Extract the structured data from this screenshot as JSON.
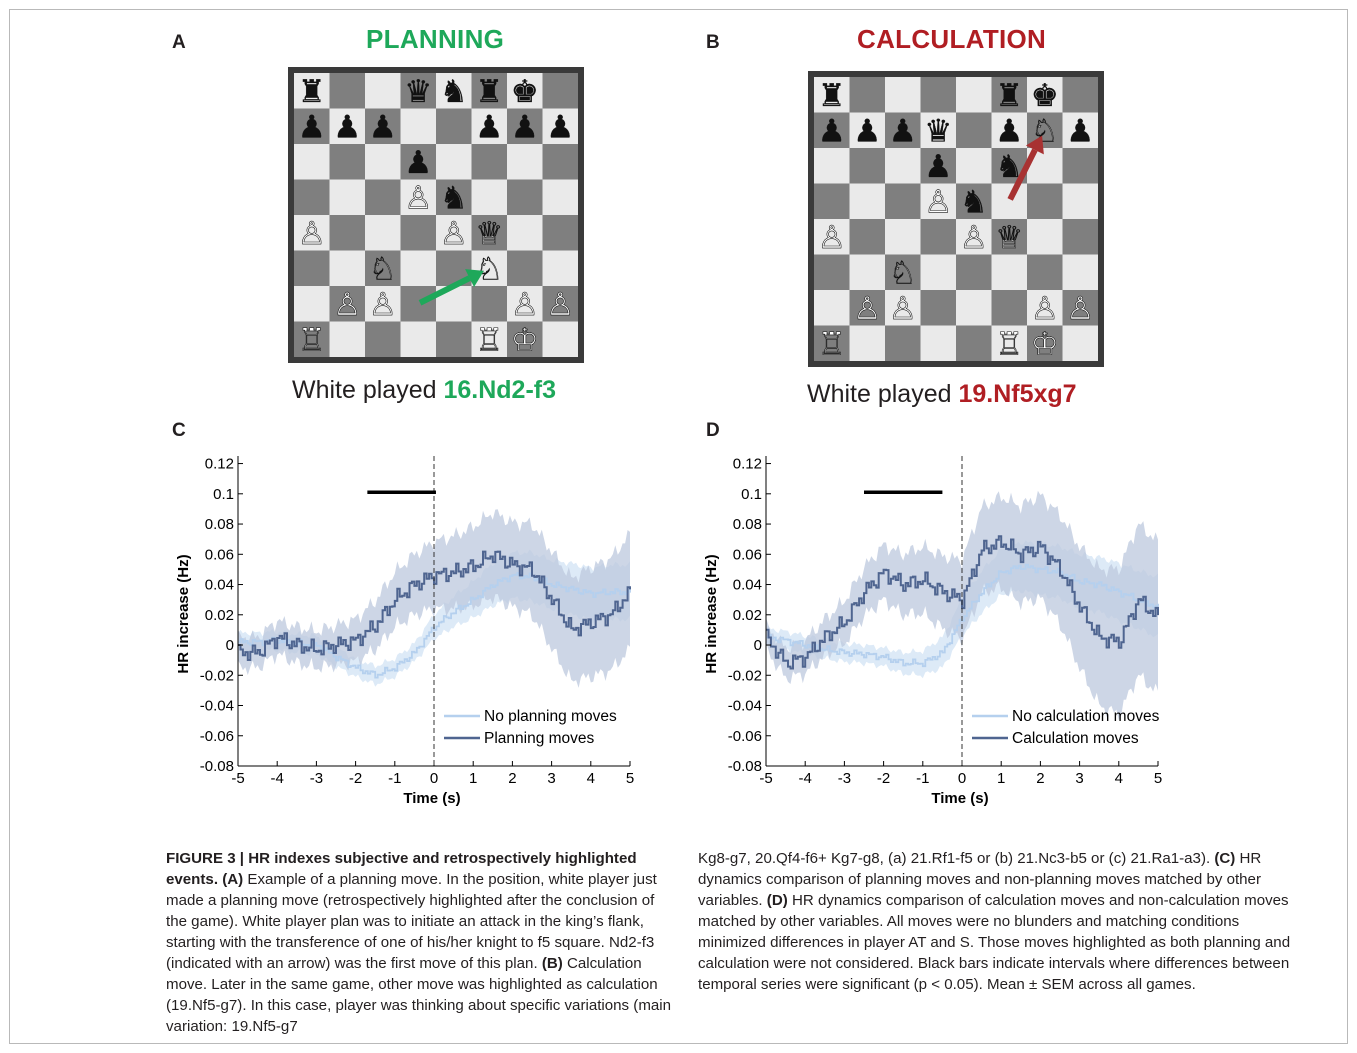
{
  "panels": {
    "A": {
      "letter": "A",
      "title": "PLANNING",
      "title_color": "#1ea85a",
      "caption_prefix": "White played ",
      "move": "16.Nd2-f3"
    },
    "B": {
      "letter": "B",
      "title": "CALCULATION",
      "title_color": "#b01e23",
      "caption_prefix": "White played ",
      "move": "19.Nf5xg7"
    },
    "C": {
      "letter": "C"
    },
    "D": {
      "letter": "D"
    }
  },
  "boards": {
    "A": {
      "pieces": [
        {
          "sq": "a8",
          "p": "rook",
          "c": "black"
        },
        {
          "sq": "d8",
          "p": "queen",
          "c": "black"
        },
        {
          "sq": "e8",
          "p": "knight",
          "c": "black"
        },
        {
          "sq": "f8",
          "p": "rook",
          "c": "black"
        },
        {
          "sq": "g8",
          "p": "king",
          "c": "black"
        },
        {
          "sq": "a7",
          "p": "pawn",
          "c": "black"
        },
        {
          "sq": "b7",
          "p": "pawn",
          "c": "black"
        },
        {
          "sq": "c7",
          "p": "pawn",
          "c": "black"
        },
        {
          "sq": "f7",
          "p": "pawn",
          "c": "black"
        },
        {
          "sq": "g7",
          "p": "pawn",
          "c": "black"
        },
        {
          "sq": "h7",
          "p": "pawn",
          "c": "black"
        },
        {
          "sq": "d6",
          "p": "pawn",
          "c": "black"
        },
        {
          "sq": "d5",
          "p": "pawn",
          "c": "white"
        },
        {
          "sq": "e5",
          "p": "knight",
          "c": "black"
        },
        {
          "sq": "a4",
          "p": "pawn",
          "c": "white"
        },
        {
          "sq": "e4",
          "p": "pawn",
          "c": "white"
        },
        {
          "sq": "f4",
          "p": "queen",
          "c": "white"
        },
        {
          "sq": "c3",
          "p": "knight",
          "c": "white"
        },
        {
          "sq": "f3",
          "p": "knight",
          "c": "white"
        },
        {
          "sq": "b2",
          "p": "pawn",
          "c": "white"
        },
        {
          "sq": "c2",
          "p": "pawn",
          "c": "white"
        },
        {
          "sq": "g2",
          "p": "pawn",
          "c": "white"
        },
        {
          "sq": "h2",
          "p": "pawn",
          "c": "white"
        },
        {
          "sq": "a1",
          "p": "rook",
          "c": "white"
        },
        {
          "sq": "f1",
          "p": "rook",
          "c": "white"
        },
        {
          "sq": "g1",
          "p": "king",
          "c": "white"
        }
      ],
      "arrow": {
        "from": "d2",
        "to": "f3",
        "color": "#1ea85a"
      }
    },
    "B": {
      "pieces": [
        {
          "sq": "a8",
          "p": "rook",
          "c": "black"
        },
        {
          "sq": "f8",
          "p": "rook",
          "c": "black"
        },
        {
          "sq": "g8",
          "p": "king",
          "c": "black"
        },
        {
          "sq": "a7",
          "p": "pawn",
          "c": "black"
        },
        {
          "sq": "b7",
          "p": "pawn",
          "c": "black"
        },
        {
          "sq": "c7",
          "p": "pawn",
          "c": "black"
        },
        {
          "sq": "d7",
          "p": "queen",
          "c": "black"
        },
        {
          "sq": "f7",
          "p": "pawn",
          "c": "black"
        },
        {
          "sq": "g7",
          "p": "knight",
          "c": "white"
        },
        {
          "sq": "h7",
          "p": "pawn",
          "c": "black"
        },
        {
          "sq": "d6",
          "p": "pawn",
          "c": "black"
        },
        {
          "sq": "f6",
          "p": "knight",
          "c": "black"
        },
        {
          "sq": "d5",
          "p": "pawn",
          "c": "white"
        },
        {
          "sq": "e5",
          "p": "knight",
          "c": "black"
        },
        {
          "sq": "a4",
          "p": "pawn",
          "c": "white"
        },
        {
          "sq": "e4",
          "p": "pawn",
          "c": "white"
        },
        {
          "sq": "f4",
          "p": "queen",
          "c": "white"
        },
        {
          "sq": "c3",
          "p": "knight",
          "c": "white"
        },
        {
          "sq": "b2",
          "p": "pawn",
          "c": "white"
        },
        {
          "sq": "c2",
          "p": "pawn",
          "c": "white"
        },
        {
          "sq": "g2",
          "p": "pawn",
          "c": "white"
        },
        {
          "sq": "h2",
          "p": "pawn",
          "c": "white"
        },
        {
          "sq": "a1",
          "p": "rook",
          "c": "white"
        },
        {
          "sq": "f1",
          "p": "rook",
          "c": "white"
        },
        {
          "sq": "g1",
          "p": "king",
          "c": "white"
        }
      ],
      "arrow": {
        "from": "f5",
        "to": "g7",
        "color": "#a83232"
      }
    }
  },
  "chart_data": [
    {
      "panel": "C",
      "type": "line",
      "xlabel": "Time (s)",
      "ylabel": "HR increase (Hz)",
      "xlim": [
        -5,
        5
      ],
      "ylim": [
        -0.08,
        0.125
      ],
      "xticks": [
        "-5",
        "-4",
        "-3",
        "-2",
        "-1",
        "0",
        "1",
        "2",
        "3",
        "4",
        "5"
      ],
      "yticks": [
        "0.12",
        "0.1",
        "0.08",
        "0.06",
        "0.04",
        "0.02",
        "0",
        "-0.02",
        "-0.04",
        "-0.06",
        "-0.08"
      ],
      "vline_x": 0,
      "significance_bar": {
        "x": [
          -1.7,
          0.05
        ],
        "y": 0.101
      },
      "legend_position": "bottom-right",
      "series": [
        {
          "name": "No planning moves",
          "color": "#b5d0ee",
          "band": "#d2e3f4",
          "x": [
            -5,
            -4.5,
            -4,
            -3.5,
            -3,
            -2.5,
            -2,
            -1.5,
            -1,
            -0.5,
            0,
            0.5,
            1,
            1.5,
            2,
            2.5,
            3,
            3.5,
            4,
            4.5,
            5
          ],
          "y": [
            0.002,
            0.002,
            0.003,
            0.001,
            0.0,
            -0.008,
            -0.015,
            -0.02,
            -0.015,
            -0.005,
            0.012,
            0.022,
            0.03,
            0.04,
            0.046,
            0.045,
            0.04,
            0.037,
            0.034,
            0.035,
            0.035
          ],
          "sem": [
            0.006,
            0.006,
            0.006,
            0.006,
            0.006,
            0.006,
            0.006,
            0.006,
            0.006,
            0.006,
            0.008,
            0.01,
            0.012,
            0.014,
            0.015,
            0.016,
            0.016,
            0.017,
            0.017,
            0.018,
            0.018
          ]
        },
        {
          "name": "Planning moves",
          "color": "#4f6590",
          "band": "#bcc8dd",
          "x": [
            -5,
            -4.5,
            -4,
            -3.5,
            -3,
            -2.5,
            -2,
            -1.5,
            -1,
            -0.5,
            0,
            0.5,
            1,
            1.5,
            2,
            2.5,
            3,
            3.5,
            4,
            4.5,
            5
          ],
          "y": [
            -0.005,
            -0.005,
            0.005,
            0.0,
            -0.003,
            0.0,
            0.003,
            0.013,
            0.03,
            0.04,
            0.046,
            0.048,
            0.052,
            0.06,
            0.053,
            0.05,
            0.03,
            0.01,
            0.015,
            0.02,
            0.035
          ],
          "sem": [
            0.01,
            0.01,
            0.011,
            0.012,
            0.012,
            0.013,
            0.014,
            0.016,
            0.018,
            0.02,
            0.022,
            0.024,
            0.026,
            0.028,
            0.028,
            0.03,
            0.032,
            0.034,
            0.036,
            0.037,
            0.038
          ]
        }
      ]
    },
    {
      "panel": "D",
      "type": "line",
      "xlabel": "Time (s)",
      "ylabel": "HR increase (Hz)",
      "xlim": [
        -5,
        5
      ],
      "ylim": [
        -0.08,
        0.125
      ],
      "xticks": [
        "-5",
        "-4",
        "-3",
        "-2",
        "-1",
        "0",
        "1",
        "2",
        "3",
        "4",
        "5"
      ],
      "yticks": [
        "0.12",
        "0.1",
        "0.08",
        "0.06",
        "0.04",
        "0.02",
        "0",
        "-0.02",
        "-0.04",
        "-0.06",
        "-0.08"
      ],
      "vline_x": 0,
      "significance_bar": {
        "x": [
          -2.5,
          -0.5
        ],
        "y": 0.101
      },
      "legend_position": "bottom-right",
      "series": [
        {
          "name": "No calculation moves",
          "color": "#b5d0ee",
          "band": "#d2e3f4",
          "x": [
            -5,
            -4.5,
            -4,
            -3.5,
            -3,
            -2.5,
            -2,
            -1.5,
            -1,
            -0.5,
            0,
            0.5,
            1,
            1.5,
            2,
            2.5,
            3,
            3.5,
            4,
            4.5,
            5
          ],
          "y": [
            0.005,
            0.003,
            0.0,
            -0.003,
            -0.005,
            -0.006,
            -0.008,
            -0.012,
            -0.012,
            -0.005,
            0.018,
            0.035,
            0.048,
            0.052,
            0.05,
            0.048,
            0.042,
            0.04,
            0.035,
            0.03,
            0.025
          ],
          "sem": [
            0.006,
            0.006,
            0.006,
            0.006,
            0.006,
            0.006,
            0.006,
            0.007,
            0.008,
            0.01,
            0.012,
            0.014,
            0.015,
            0.016,
            0.017,
            0.017,
            0.018,
            0.018,
            0.019,
            0.019,
            0.02
          ]
        },
        {
          "name": "Calculation moves",
          "color": "#4f6590",
          "band": "#bcc8dd",
          "x": [
            -5,
            -4.5,
            -4,
            -3.5,
            -3,
            -2.5,
            -2,
            -1.5,
            -1,
            -0.5,
            0,
            0.5,
            1,
            1.5,
            2,
            2.5,
            3,
            3.5,
            4,
            4.5,
            5
          ],
          "y": [
            0.005,
            -0.012,
            -0.008,
            0.005,
            0.015,
            0.035,
            0.048,
            0.04,
            0.043,
            0.035,
            0.03,
            0.063,
            0.068,
            0.06,
            0.065,
            0.05,
            0.025,
            0.005,
            0.002,
            0.03,
            0.018
          ],
          "sem": [
            0.008,
            0.01,
            0.011,
            0.012,
            0.014,
            0.016,
            0.018,
            0.02,
            0.022,
            0.024,
            0.026,
            0.028,
            0.03,
            0.032,
            0.034,
            0.036,
            0.04,
            0.045,
            0.048,
            0.05,
            0.05
          ]
        }
      ]
    }
  ],
  "caption": {
    "label": "FIGURE 3 | HR indexes subjective and retrospectively highlighted events.",
    "left": [
      {
        "b": "(A)",
        "t": " Example of a planning move. In the position, white player just made a planning move (retrospectively highlighted after the conclusion of the game). White player plan was to initiate an attack in the king’s flank, starting with the transference of one of his/her knight to f5 square. Nd2-f3 (indicated with an arrow) was the first move of this plan. "
      },
      {
        "b": "(B)",
        "t": " Calculation move. Later in the same game, other move was highlighted as calculation (19.Nf5-g7). In this case, player was thinking about specific variations (main variation: 19.Nf5-g7"
      }
    ],
    "right": [
      {
        "b": "",
        "t": "Kg8-g7, 20.Qf4-f6+ Kg7-g8, (a) 21.Rf1-f5 or (b) 21.Nc3-b5 or (c) 21.Ra1-a3). "
      },
      {
        "b": "(C)",
        "t": " HR dynamics comparison of planning moves and non-planning moves matched by other variables. "
      },
      {
        "b": "(D)",
        "t": " HR dynamics comparison of calculation moves and non-calculation moves matched by other variables. All moves were no blunders and matching conditions minimized differences in player AT and S. Those moves highlighted as both planning and calculation were not considered. Black bars indicate intervals where differences between temporal series were significant ("
      },
      {
        "b": "",
        "t": "p < 0.05). Mean ± SEM across all games."
      }
    ]
  },
  "colors": {
    "light_square": "#eaeaea",
    "dark_square": "#7f7f7f",
    "border": "#3a3a3a"
  }
}
